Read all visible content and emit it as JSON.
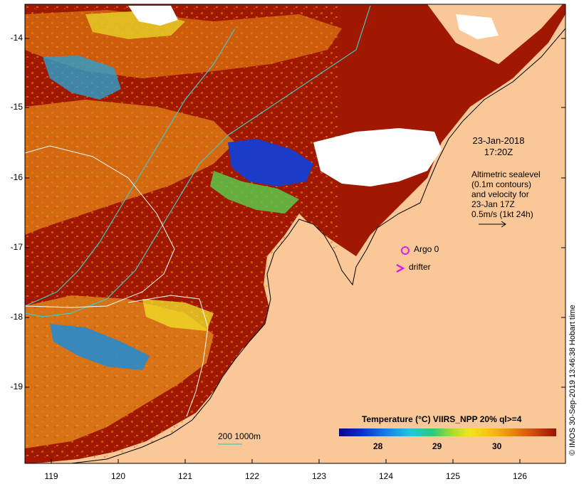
{
  "map": {
    "lat_labels": [
      "-14",
      "-15",
      "-16",
      "-17",
      "-18",
      "-19"
    ],
    "lon_labels": [
      "119",
      "120",
      "121",
      "122",
      "123",
      "124",
      "125",
      "126"
    ],
    "date_line1": "23-Jan-2018",
    "date_line2": "17:20Z",
    "legend_lines": [
      "Altimetric sealevel",
      "(0.1m contours)",
      "and velocity for",
      "23-Jan 17Z",
      "0.5m/s (1kt 24h)"
    ],
    "argo_label": "Argo 0",
    "drifter_label": "drifter",
    "colorbar_title": "Temperature (°C) VIIRS_NPP 20% ql>=4",
    "colorbar_ticks": [
      "28",
      "29",
      "30"
    ],
    "scale_label": "200  1000m",
    "credit": "© IMOS 30-Sep-2019 13:46:38 Hobart time",
    "colors": {
      "land": "#fac898",
      "warm_sst": "#a01800",
      "mid_sst": "#dc6e10",
      "cool_sst": "#1a3cc8",
      "contour": "#40c8c8",
      "argo": "#e01ee0"
    }
  }
}
